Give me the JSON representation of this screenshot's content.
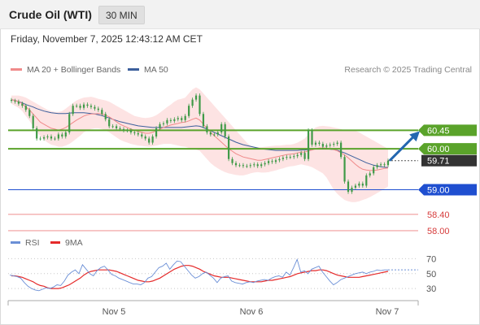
{
  "header": {
    "instrument": "Crude Oil (WTI)",
    "interval": "30 MIN"
  },
  "timestamp": "Friday, November 7, 2025 12:43:12 AM CET",
  "credit": "Research © 2025 Trading Central",
  "colors": {
    "ma20": "#f08a8a",
    "ma50": "#3c5f9c",
    "band_fill": "#fde3e3",
    "candle": "#3f9a47",
    "resistance": "#5aa32a",
    "support": "#1f4fd0",
    "support_minor": "#f19c9c",
    "rsi": "#6b8fd6",
    "rsi_ma": "#e52a2a",
    "arrow": "#2467b0",
    "last_price_box": "#333333"
  },
  "chart_data": [
    {
      "type": "candlestick",
      "title": "Crude Oil (WTI)",
      "x_ticks": [
        "Nov 5",
        "Nov 6",
        "Nov 7"
      ],
      "legend": [
        {
          "label": "MA 20 + Bollinger Bands",
          "color": "#f08a8a"
        },
        {
          "label": "MA 50",
          "color": "#3c5f9c"
        }
      ],
      "ylim": [
        57.9,
        61.45
      ],
      "close": [
        61.17,
        61.15,
        61.1,
        61.05,
        60.95,
        60.8,
        60.5,
        60.25,
        60.25,
        60.28,
        60.3,
        60.25,
        60.25,
        60.35,
        60.3,
        60.4,
        60.85,
        61.05,
        61.05,
        61.0,
        61.08,
        61.05,
        61.02,
        60.98,
        60.95,
        60.85,
        60.72,
        60.55,
        60.55,
        60.5,
        60.48,
        60.45,
        60.45,
        60.4,
        60.38,
        60.35,
        60.3,
        60.25,
        60.15,
        60.3,
        60.5,
        60.6,
        60.62,
        60.7,
        60.68,
        60.72,
        60.75,
        60.7,
        60.8,
        61.05,
        61.2,
        61.3,
        60.85,
        60.55,
        60.4,
        60.35,
        60.35,
        60.4,
        60.6,
        60.3,
        59.75,
        59.65,
        59.6,
        59.6,
        59.58,
        59.58,
        59.6,
        59.62,
        59.58,
        59.62,
        59.65,
        59.7,
        59.68,
        59.72,
        59.75,
        59.78,
        59.8,
        59.8,
        59.82,
        59.85,
        59.9,
        59.75,
        60.45,
        60.1,
        60.15,
        60.12,
        60.05,
        60.08,
        60.1,
        60.12,
        60.15,
        59.8,
        59.2,
        58.95,
        59.05,
        59.1,
        59.15,
        59.1,
        59.35,
        59.4,
        59.55,
        59.6,
        59.62,
        59.6,
        59.71
      ],
      "ma20": [
        61.2,
        61.18,
        61.15,
        61.1,
        61.02,
        60.95,
        60.85,
        60.75,
        60.65,
        60.6,
        60.55,
        60.5,
        60.48,
        60.45,
        60.48,
        60.52,
        60.58,
        60.64,
        60.7,
        60.75,
        60.8,
        60.83,
        60.85,
        60.85,
        60.86,
        60.85,
        60.82,
        60.78,
        60.72,
        60.66,
        60.6,
        60.56,
        60.52,
        60.48,
        60.45,
        60.42,
        60.4,
        60.38,
        60.38,
        60.4,
        60.44,
        60.48,
        60.52,
        60.55,
        60.58,
        60.6,
        60.62,
        60.64,
        60.65,
        60.68,
        60.72,
        60.75,
        60.7,
        60.6,
        60.5,
        60.4,
        60.32,
        60.24,
        60.16,
        60.08,
        60.0,
        59.94,
        59.88,
        59.84,
        59.8,
        59.78,
        59.76,
        59.74,
        59.72,
        59.72,
        59.74,
        59.76,
        59.78,
        59.8,
        59.82,
        59.84,
        59.86,
        59.87,
        59.88,
        59.9,
        59.92,
        59.92,
        59.95,
        59.97,
        60.0,
        60.02,
        60.02,
        60.02,
        60.0,
        59.98,
        59.95,
        59.9,
        59.85,
        59.78,
        59.7,
        59.62,
        59.55,
        59.5,
        59.48,
        59.47,
        59.47,
        59.48,
        59.5,
        59.52,
        59.53
      ],
      "bb_upper": [
        61.3,
        61.3,
        61.3,
        61.28,
        61.25,
        61.2,
        61.15,
        61.1,
        61.05,
        61.0,
        60.95,
        60.92,
        60.9,
        60.9,
        60.92,
        60.98,
        61.05,
        61.12,
        61.18,
        61.22,
        61.25,
        61.26,
        61.27,
        61.25,
        61.22,
        61.2,
        61.18,
        61.15,
        61.1,
        61.05,
        61.0,
        60.95,
        60.9,
        60.85,
        60.8,
        60.78,
        60.76,
        60.75,
        60.76,
        60.78,
        60.82,
        60.88,
        60.95,
        61.02,
        61.08,
        61.15,
        61.2,
        61.22,
        61.25,
        61.35,
        61.45,
        61.5,
        61.45,
        61.35,
        61.25,
        61.15,
        61.05,
        60.95,
        60.85,
        60.75,
        60.65,
        60.55,
        60.45,
        60.35,
        60.25,
        60.15,
        60.08,
        60.05,
        60.04,
        60.04,
        60.05,
        60.06,
        60.07,
        60.08,
        60.08,
        60.09,
        60.1,
        60.1,
        60.12,
        60.15,
        60.2,
        60.25,
        60.35,
        60.45,
        60.52,
        60.55,
        60.56,
        60.55,
        60.54,
        60.52,
        60.5,
        60.48,
        60.45,
        60.45,
        60.45,
        60.44,
        60.4,
        60.35,
        60.3,
        60.25,
        60.2,
        60.15,
        60.1,
        60.05,
        60.0
      ],
      "bb_lower": [
        61.1,
        61.05,
        61.0,
        60.92,
        60.8,
        60.68,
        60.55,
        60.42,
        60.3,
        60.22,
        60.15,
        60.1,
        60.08,
        60.05,
        60.05,
        60.08,
        60.12,
        60.18,
        60.25,
        60.32,
        60.4,
        60.45,
        60.48,
        60.5,
        60.5,
        60.48,
        60.45,
        60.4,
        60.34,
        60.28,
        60.22,
        60.18,
        60.15,
        60.12,
        60.1,
        60.08,
        60.07,
        60.06,
        60.05,
        60.06,
        60.08,
        60.1,
        60.12,
        60.12,
        60.12,
        60.1,
        60.08,
        60.06,
        60.05,
        60.02,
        60.0,
        59.98,
        59.95,
        59.85,
        59.75,
        59.65,
        59.58,
        59.52,
        59.47,
        59.43,
        59.4,
        59.38,
        59.36,
        59.35,
        59.35,
        59.37,
        59.4,
        59.42,
        59.43,
        59.42,
        59.42,
        59.43,
        59.45,
        59.47,
        59.5,
        59.52,
        59.55,
        59.57,
        59.58,
        59.6,
        59.62,
        59.6,
        59.58,
        59.55,
        59.5,
        59.45,
        59.4,
        59.3,
        59.15,
        59.0,
        58.9,
        58.82,
        58.75,
        58.72,
        58.7,
        58.7,
        58.72,
        58.75,
        58.78,
        58.82,
        58.87,
        58.92,
        58.97,
        59.02,
        59.08
      ],
      "ma50": [
        61.2,
        61.18,
        61.15,
        61.12,
        61.08,
        61.05,
        61.02,
        60.98,
        60.95,
        60.92,
        60.9,
        60.88,
        60.87,
        60.86,
        60.86,
        60.86,
        60.87,
        60.88,
        60.88,
        60.88,
        60.88,
        60.87,
        60.86,
        60.85,
        60.83,
        60.81,
        60.78,
        60.75,
        60.72,
        60.69,
        60.66,
        60.64,
        60.62,
        60.6,
        60.58,
        60.56,
        60.55,
        60.54,
        60.53,
        60.52,
        60.52,
        60.52,
        60.52,
        60.52,
        60.52,
        60.52,
        60.52,
        60.52,
        60.53,
        60.54,
        60.55,
        60.56,
        60.55,
        60.52,
        60.48,
        60.44,
        60.4,
        60.36,
        60.32,
        60.28,
        60.24,
        60.2,
        60.16,
        60.13,
        60.1,
        60.08,
        60.06,
        60.04,
        60.02,
        60.0,
        59.99,
        59.98,
        59.97,
        59.96,
        59.96,
        59.96,
        59.96,
        59.96,
        59.96,
        59.96,
        59.97,
        59.97,
        59.98,
        59.99,
        60.0,
        60.0,
        60.0,
        60.0,
        59.99,
        59.98,
        59.96,
        59.93,
        59.9,
        59.86,
        59.82,
        59.78,
        59.74,
        59.7,
        59.66,
        59.63,
        59.6,
        59.58,
        59.56,
        59.55,
        59.54
      ],
      "levels": [
        {
          "value": 60.45,
          "label": "60.45",
          "kind": "resistance"
        },
        {
          "value": 60.0,
          "label": "60.00",
          "kind": "resistance"
        },
        {
          "value": 59.71,
          "label": "59.71",
          "kind": "last"
        },
        {
          "value": 59.0,
          "label": "59.00",
          "kind": "pivot"
        },
        {
          "value": 58.4,
          "label": "58.40",
          "kind": "support"
        },
        {
          "value": 58.0,
          "label": "58.00",
          "kind": "support"
        }
      ],
      "forecast": {
        "from": 59.71,
        "to": 60.45,
        "direction": "up"
      }
    },
    {
      "type": "line",
      "title": "",
      "legend": [
        {
          "label": "RSI",
          "color": "#6b8fd6"
        },
        {
          "label": "9MA",
          "color": "#e52a2a"
        }
      ],
      "ylim": [
        17,
        77
      ],
      "y_ticks": [
        70,
        50,
        30
      ],
      "rsi": [
        48,
        47,
        46,
        44,
        38,
        33,
        30,
        28,
        27,
        29,
        31,
        30,
        32,
        35,
        34,
        40,
        48,
        52,
        55,
        50,
        62,
        56,
        50,
        47,
        54,
        58,
        60,
        55,
        49,
        47,
        44,
        42,
        40,
        38,
        36,
        36,
        35,
        38,
        44,
        46,
        52,
        58,
        60,
        64,
        56,
        62,
        67,
        66,
        60,
        54,
        48,
        44,
        46,
        50,
        52,
        48,
        44,
        38,
        44,
        46,
        47,
        40,
        38,
        37,
        36,
        38,
        39,
        38,
        40,
        41,
        42,
        41,
        44,
        46,
        47,
        45,
        52,
        48,
        58,
        69,
        52,
        54,
        50,
        56,
        58,
        60,
        52,
        46,
        40,
        35,
        38,
        42,
        44,
        46,
        48,
        50,
        51,
        52,
        50,
        52,
        53,
        55,
        54,
        55,
        55
      ],
      "ma9": [
        47,
        47,
        46,
        45,
        43,
        41,
        39,
        36,
        34,
        33,
        31,
        30,
        30,
        30,
        31,
        33,
        35,
        38,
        41,
        44,
        48,
        51,
        53,
        54,
        55,
        55,
        55,
        55,
        54,
        53,
        51,
        49,
        47,
        45,
        43,
        41,
        40,
        39,
        39,
        40,
        42,
        44,
        47,
        50,
        53,
        56,
        58,
        60,
        61,
        61,
        60,
        58,
        56,
        53,
        51,
        49,
        47,
        46,
        45,
        45,
        45,
        44,
        43,
        42,
        41,
        40,
        39,
        39,
        39,
        39,
        40,
        41,
        41,
        42,
        43,
        44,
        45,
        46,
        48,
        50,
        51,
        52,
        53,
        54,
        54,
        55,
        55,
        54,
        52,
        50,
        48,
        47,
        46,
        45,
        45,
        45,
        45,
        46,
        47,
        48,
        49,
        50,
        51,
        52,
        53
      ]
    }
  ]
}
